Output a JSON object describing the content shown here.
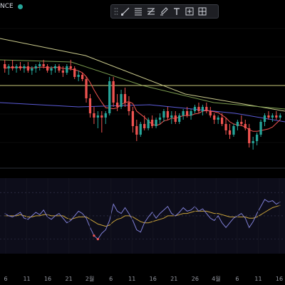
{
  "ticker": {
    "partial_label": "NCE",
    "status_color": "#26a69a"
  },
  "toolbar": {
    "tools": [
      {
        "name": "drag-handle-icon"
      },
      {
        "name": "trend-line-icon"
      },
      {
        "name": "horizontal-lines-icon"
      },
      {
        "name": "fib-retracement-icon"
      },
      {
        "name": "brush-icon"
      },
      {
        "name": "text-icon"
      },
      {
        "name": "measure-icon"
      },
      {
        "name": "fullscreen-icon"
      }
    ]
  },
  "colors": {
    "up": "#26a69a",
    "down": "#ef5350",
    "ma_fast": "#ef5350",
    "ma_mid": "#7b9b4f",
    "ma_slow": "#c9c98c",
    "ma_long": "#5b5bd6",
    "hline": "#c8c87a",
    "rsi_line": "#7f7fd5",
    "rsi_signal": "#c8a23a"
  },
  "x_axis_labels": [
    "6",
    "11",
    "16",
    "21",
    "2월",
    "6",
    "11",
    "16",
    "21",
    "26",
    "4월",
    "6",
    "11",
    "16"
  ],
  "chart_data": {
    "type": "candlestick",
    "candles": [
      {
        "o": 80,
        "h": 82,
        "l": 76,
        "c": 78
      },
      {
        "o": 78,
        "h": 80,
        "l": 75,
        "c": 79
      },
      {
        "o": 79,
        "h": 82,
        "l": 77,
        "c": 78
      },
      {
        "o": 78,
        "h": 80,
        "l": 76,
        "c": 79
      },
      {
        "o": 79,
        "h": 81,
        "l": 77,
        "c": 78
      },
      {
        "o": 78,
        "h": 80,
        "l": 76,
        "c": 79
      },
      {
        "o": 79,
        "h": 81,
        "l": 76,
        "c": 77
      },
      {
        "o": 77,
        "h": 79,
        "l": 75,
        "c": 78
      },
      {
        "o": 78,
        "h": 80,
        "l": 76,
        "c": 79
      },
      {
        "o": 79,
        "h": 81,
        "l": 77,
        "c": 80
      },
      {
        "o": 80,
        "h": 82,
        "l": 78,
        "c": 79
      },
      {
        "o": 79,
        "h": 80,
        "l": 76,
        "c": 77
      },
      {
        "o": 77,
        "h": 79,
        "l": 75,
        "c": 78
      },
      {
        "o": 78,
        "h": 80,
        "l": 76,
        "c": 79
      },
      {
        "o": 79,
        "h": 80,
        "l": 76,
        "c": 77
      },
      {
        "o": 77,
        "h": 79,
        "l": 74,
        "c": 76
      },
      {
        "o": 76,
        "h": 80,
        "l": 75,
        "c": 79
      },
      {
        "o": 79,
        "h": 82,
        "l": 77,
        "c": 78
      },
      {
        "o": 78,
        "h": 79,
        "l": 73,
        "c": 74
      },
      {
        "o": 74,
        "h": 77,
        "l": 72,
        "c": 75
      },
      {
        "o": 75,
        "h": 76,
        "l": 72,
        "c": 73
      },
      {
        "o": 73,
        "h": 74,
        "l": 62,
        "c": 64
      },
      {
        "o": 64,
        "h": 66,
        "l": 55,
        "c": 57
      },
      {
        "o": 57,
        "h": 60,
        "l": 52,
        "c": 55
      },
      {
        "o": 55,
        "h": 58,
        "l": 50,
        "c": 56
      },
      {
        "o": 56,
        "h": 58,
        "l": 48,
        "c": 55
      },
      {
        "o": 55,
        "h": 58,
        "l": 52,
        "c": 57
      },
      {
        "o": 57,
        "h": 74,
        "l": 56,
        "c": 72
      },
      {
        "o": 72,
        "h": 74,
        "l": 60,
        "c": 62
      },
      {
        "o": 62,
        "h": 66,
        "l": 58,
        "c": 60
      },
      {
        "o": 60,
        "h": 68,
        "l": 59,
        "c": 66
      },
      {
        "o": 66,
        "h": 69,
        "l": 60,
        "c": 62
      },
      {
        "o": 62,
        "h": 65,
        "l": 56,
        "c": 58
      },
      {
        "o": 58,
        "h": 60,
        "l": 48,
        "c": 51
      },
      {
        "o": 51,
        "h": 54,
        "l": 44,
        "c": 47
      },
      {
        "o": 47,
        "h": 53,
        "l": 46,
        "c": 52
      },
      {
        "o": 52,
        "h": 56,
        "l": 49,
        "c": 50
      },
      {
        "o": 50,
        "h": 55,
        "l": 49,
        "c": 54
      },
      {
        "o": 54,
        "h": 56,
        "l": 50,
        "c": 51
      },
      {
        "o": 51,
        "h": 55,
        "l": 50,
        "c": 54
      },
      {
        "o": 54,
        "h": 57,
        "l": 52,
        "c": 55
      },
      {
        "o": 55,
        "h": 59,
        "l": 53,
        "c": 58
      },
      {
        "o": 58,
        "h": 60,
        "l": 54,
        "c": 55
      },
      {
        "o": 55,
        "h": 58,
        "l": 52,
        "c": 56
      },
      {
        "o": 56,
        "h": 58,
        "l": 52,
        "c": 53
      },
      {
        "o": 53,
        "h": 57,
        "l": 52,
        "c": 56
      },
      {
        "o": 56,
        "h": 59,
        "l": 54,
        "c": 58
      },
      {
        "o": 58,
        "h": 60,
        "l": 55,
        "c": 56
      },
      {
        "o": 56,
        "h": 59,
        "l": 54,
        "c": 58
      },
      {
        "o": 58,
        "h": 61,
        "l": 57,
        "c": 60
      },
      {
        "o": 60,
        "h": 62,
        "l": 57,
        "c": 58
      },
      {
        "o": 58,
        "h": 61,
        "l": 56,
        "c": 60
      },
      {
        "o": 60,
        "h": 62,
        "l": 57,
        "c": 58
      },
      {
        "o": 58,
        "h": 60,
        "l": 55,
        "c": 56
      },
      {
        "o": 56,
        "h": 57,
        "l": 52,
        "c": 54
      },
      {
        "o": 54,
        "h": 56,
        "l": 52,
        "c": 55
      },
      {
        "o": 55,
        "h": 57,
        "l": 51,
        "c": 52
      },
      {
        "o": 52,
        "h": 55,
        "l": 47,
        "c": 49
      },
      {
        "o": 49,
        "h": 52,
        "l": 45,
        "c": 47
      },
      {
        "o": 47,
        "h": 52,
        "l": 46,
        "c": 51
      },
      {
        "o": 51,
        "h": 54,
        "l": 49,
        "c": 53
      },
      {
        "o": 53,
        "h": 56,
        "l": 51,
        "c": 52
      },
      {
        "o": 52,
        "h": 54,
        "l": 49,
        "c": 50
      },
      {
        "o": 50,
        "h": 52,
        "l": 41,
        "c": 43
      },
      {
        "o": 43,
        "h": 46,
        "l": 40,
        "c": 44
      },
      {
        "o": 44,
        "h": 48,
        "l": 42,
        "c": 47
      },
      {
        "o": 47,
        "h": 54,
        "l": 46,
        "c": 53
      },
      {
        "o": 53,
        "h": 57,
        "l": 51,
        "c": 56
      },
      {
        "o": 56,
        "h": 58,
        "l": 54,
        "c": 55
      },
      {
        "o": 55,
        "h": 57,
        "l": 53,
        "c": 56
      },
      {
        "o": 56,
        "h": 58,
        "l": 54,
        "c": 55
      },
      {
        "o": 55,
        "h": 57,
        "l": 54,
        "c": 56
      }
    ],
    "hline": 70,
    "rsi": [
      52,
      50,
      49,
      51,
      53,
      48,
      47,
      50,
      53,
      51,
      55,
      49,
      47,
      50,
      52,
      48,
      44,
      46,
      50,
      54,
      52,
      48,
      40,
      33,
      30,
      35,
      38,
      46,
      60,
      54,
      52,
      57,
      52,
      46,
      38,
      36,
      44,
      49,
      53,
      48,
      52,
      55,
      58,
      52,
      50,
      53,
      57,
      54,
      55,
      58,
      54,
      56,
      52,
      48,
      46,
      50,
      44,
      40,
      44,
      48,
      50,
      52,
      48,
      40,
      45,
      52,
      58,
      64,
      62,
      63,
      60,
      62
    ],
    "rsi_signal": [
      50,
      50,
      50,
      50,
      51,
      50,
      49,
      49,
      50,
      50,
      51,
      51,
      50,
      50,
      50,
      50,
      48,
      47,
      48,
      49,
      49,
      49,
      47,
      45,
      43,
      42,
      41,
      42,
      45,
      47,
      48,
      50,
      50,
      49,
      47,
      45,
      44,
      44,
      45,
      46,
      47,
      48,
      50,
      50,
      50,
      51,
      52,
      52,
      53,
      54,
      54,
      54,
      54,
      53,
      52,
      52,
      51,
      50,
      49,
      49,
      49,
      49,
      49,
      48,
      48,
      49,
      51,
      53,
      55,
      57,
      58,
      59
    ],
    "rsi_levels": [
      70,
      50,
      30
    ]
  }
}
